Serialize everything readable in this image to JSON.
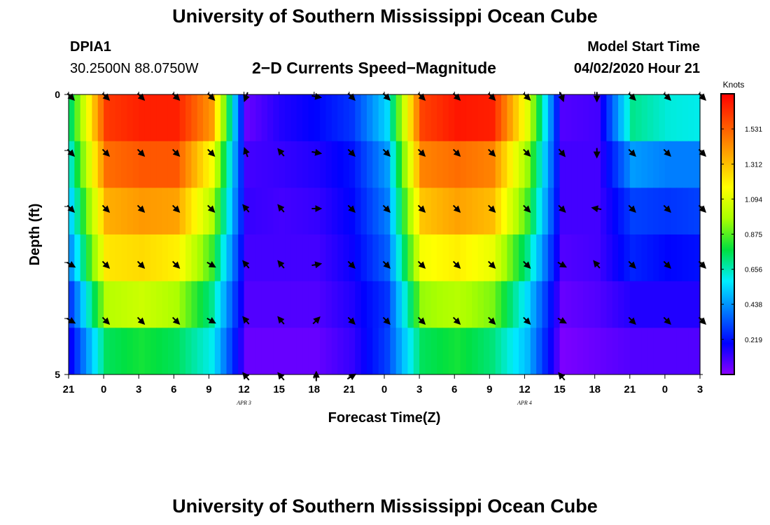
{
  "header": {
    "title": "University of Southern Mississippi Ocean Cube",
    "station_id": "DPIA1",
    "coords": "30.2500N 88.0750W",
    "subtitle": "2−D Currents Speed−Magnitude",
    "model_label": "Model Start Time",
    "model_time": "04/02/2020 Hour 21"
  },
  "footer": {
    "title": "University of Southern Mississippi Ocean Cube"
  },
  "chart_data": {
    "type": "heatmap",
    "title": "2-D Currents Speed-Magnitude",
    "xlabel": "Forecast Time(Z)",
    "ylabel": "Depth (ft)",
    "ylim": [
      0,
      5
    ],
    "y_ticks": [
      "0",
      "5"
    ],
    "x_ticks": [
      "21",
      "0",
      "3",
      "6",
      "9",
      "12",
      "15",
      "18",
      "21",
      "0",
      "3",
      "6",
      "9",
      "12",
      "15",
      "18",
      "21",
      "0",
      "3"
    ],
    "date_labels": [
      {
        "label": "APR 3",
        "at_tick": 5
      },
      {
        "label": "APR 4",
        "at_tick": 13
      }
    ],
    "colorbar": {
      "label": "Knots",
      "ticks": [
        "1.531",
        "1.312",
        "1.094",
        "0.875",
        "0.656",
        "0.438",
        "0.219"
      ],
      "vmin": 0.0,
      "vmax": 1.75,
      "colors": [
        "#8a00ff",
        "#0000ff",
        "#0077ff",
        "#00eeff",
        "#00e040",
        "#aaff00",
        "#ffff00",
        "#ffaa00",
        "#ff5500",
        "#ff0000"
      ]
    },
    "time_hours": [
      0,
      3,
      6,
      9,
      12,
      15,
      18,
      21,
      24,
      27,
      30,
      33,
      36,
      39,
      42,
      45,
      48,
      51,
      54
    ],
    "layers": [
      {
        "depth_label": "0",
        "values": [
          0.75,
          1.62,
          1.68,
          1.68,
          1.4,
          0.05,
          0.15,
          0.2,
          0.28,
          0.55,
          1.6,
          1.7,
          1.68,
          1.1,
          0.08,
          0.1,
          0.7,
          0.62,
          0.6
        ]
      },
      {
        "depth_label": "1",
        "values": [
          0.65,
          1.5,
          1.55,
          1.55,
          1.15,
          0.1,
          0.12,
          0.15,
          0.22,
          0.45,
          1.45,
          1.5,
          1.45,
          0.95,
          0.1,
          0.1,
          0.45,
          0.4,
          0.4
        ]
      },
      {
        "depth_label": "2",
        "values": [
          0.55,
          1.35,
          1.4,
          1.38,
          1.0,
          0.12,
          0.1,
          0.12,
          0.2,
          0.4,
          1.3,
          1.38,
          1.32,
          0.85,
          0.1,
          0.1,
          0.3,
          0.28,
          0.3
        ]
      },
      {
        "depth_label": "3",
        "values": [
          0.45,
          1.22,
          1.25,
          1.2,
          0.85,
          0.1,
          0.1,
          0.1,
          0.18,
          0.35,
          1.15,
          1.2,
          1.12,
          0.7,
          0.08,
          0.1,
          0.25,
          0.2,
          0.22
        ]
      },
      {
        "depth_label": "4",
        "values": [
          0.3,
          1.0,
          1.05,
          0.98,
          0.7,
          0.08,
          0.08,
          0.08,
          0.15,
          0.28,
          0.95,
          1.0,
          0.92,
          0.55,
          0.05,
          0.08,
          0.15,
          0.15,
          0.15
        ]
      },
      {
        "depth_label": "4.5",
        "values": [
          0.2,
          0.75,
          0.8,
          0.75,
          0.6,
          0.05,
          0.05,
          0.05,
          0.12,
          0.3,
          0.75,
          0.8,
          0.72,
          0.5,
          0.02,
          0.05,
          0.08,
          0.08,
          0.08
        ]
      }
    ],
    "arrows": [
      {
        "depth": 0,
        "time": 0,
        "dir": 135
      },
      {
        "depth": 0,
        "time": 3,
        "dir": 135
      },
      {
        "depth": 0,
        "time": 6,
        "dir": 135
      },
      {
        "depth": 0,
        "time": 9,
        "dir": 135
      },
      {
        "depth": 0,
        "time": 12,
        "dir": 135
      },
      {
        "depth": 0,
        "time": 15,
        "dir": 200
      },
      {
        "depth": 0,
        "time": 21,
        "dir": 100
      },
      {
        "depth": 0,
        "time": 24,
        "dir": 135
      },
      {
        "depth": 0,
        "time": 27,
        "dir": 135
      },
      {
        "depth": 0,
        "time": 30,
        "dir": 135
      },
      {
        "depth": 0,
        "time": 33,
        "dir": 135
      },
      {
        "depth": 0,
        "time": 36,
        "dir": 135
      },
      {
        "depth": 0,
        "time": 39,
        "dir": 135
      },
      {
        "depth": 0,
        "time": 42,
        "dir": 160
      },
      {
        "depth": 0,
        "time": 45,
        "dir": 180
      },
      {
        "depth": 0,
        "time": 48,
        "dir": 135
      },
      {
        "depth": 0,
        "time": 51,
        "dir": 135
      },
      {
        "depth": 0,
        "time": 54,
        "dir": 135
      },
      {
        "depth": 1,
        "time": 0,
        "dir": 135
      },
      {
        "depth": 1,
        "time": 3,
        "dir": 135
      },
      {
        "depth": 1,
        "time": 6,
        "dir": 135
      },
      {
        "depth": 1,
        "time": 9,
        "dir": 135
      },
      {
        "depth": 1,
        "time": 12,
        "dir": 135
      },
      {
        "depth": 1,
        "time": 15,
        "dir": 340
      },
      {
        "depth": 1,
        "time": 18,
        "dir": 320
      },
      {
        "depth": 1,
        "time": 21,
        "dir": 100
      },
      {
        "depth": 1,
        "time": 24,
        "dir": 135
      },
      {
        "depth": 1,
        "time": 27,
        "dir": 135
      },
      {
        "depth": 1,
        "time": 30,
        "dir": 135
      },
      {
        "depth": 1,
        "time": 33,
        "dir": 135
      },
      {
        "depth": 1,
        "time": 36,
        "dir": 135
      },
      {
        "depth": 1,
        "time": 39,
        "dir": 135
      },
      {
        "depth": 1,
        "time": 42,
        "dir": 140
      },
      {
        "depth": 1,
        "time": 45,
        "dir": 180
      },
      {
        "depth": 1,
        "time": 48,
        "dir": 135
      },
      {
        "depth": 1,
        "time": 51,
        "dir": 135
      },
      {
        "depth": 1,
        "time": 54,
        "dir": 135
      },
      {
        "depth": 2,
        "time": 0,
        "dir": 135
      },
      {
        "depth": 2,
        "time": 3,
        "dir": 135
      },
      {
        "depth": 2,
        "time": 6,
        "dir": 135
      },
      {
        "depth": 2,
        "time": 9,
        "dir": 135
      },
      {
        "depth": 2,
        "time": 12,
        "dir": 135
      },
      {
        "depth": 2,
        "time": 15,
        "dir": 320
      },
      {
        "depth": 2,
        "time": 18,
        "dir": 320
      },
      {
        "depth": 2,
        "time": 21,
        "dir": 90
      },
      {
        "depth": 2,
        "time": 24,
        "dir": 135
      },
      {
        "depth": 2,
        "time": 27,
        "dir": 135
      },
      {
        "depth": 2,
        "time": 30,
        "dir": 135
      },
      {
        "depth": 2,
        "time": 33,
        "dir": 135
      },
      {
        "depth": 2,
        "time": 36,
        "dir": 135
      },
      {
        "depth": 2,
        "time": 39,
        "dir": 135
      },
      {
        "depth": 2,
        "time": 42,
        "dir": 135
      },
      {
        "depth": 2,
        "time": 45,
        "dir": 280
      },
      {
        "depth": 2,
        "time": 48,
        "dir": 135
      },
      {
        "depth": 2,
        "time": 51,
        "dir": 135
      },
      {
        "depth": 2,
        "time": 54,
        "dir": 135
      },
      {
        "depth": 3,
        "time": 0,
        "dir": 120
      },
      {
        "depth": 3,
        "time": 3,
        "dir": 135
      },
      {
        "depth": 3,
        "time": 6,
        "dir": 135
      },
      {
        "depth": 3,
        "time": 9,
        "dir": 135
      },
      {
        "depth": 3,
        "time": 12,
        "dir": 120
      },
      {
        "depth": 3,
        "time": 15,
        "dir": 320
      },
      {
        "depth": 3,
        "time": 18,
        "dir": 320
      },
      {
        "depth": 3,
        "time": 21,
        "dir": 80
      },
      {
        "depth": 3,
        "time": 24,
        "dir": 135
      },
      {
        "depth": 3,
        "time": 27,
        "dir": 135
      },
      {
        "depth": 3,
        "time": 30,
        "dir": 135
      },
      {
        "depth": 3,
        "time": 33,
        "dir": 135
      },
      {
        "depth": 3,
        "time": 36,
        "dir": 135
      },
      {
        "depth": 3,
        "time": 39,
        "dir": 135
      },
      {
        "depth": 3,
        "time": 42,
        "dir": 120
      },
      {
        "depth": 3,
        "time": 45,
        "dir": 320
      },
      {
        "depth": 3,
        "time": 48,
        "dir": 135
      },
      {
        "depth": 3,
        "time": 51,
        "dir": 135
      },
      {
        "depth": 3,
        "time": 54,
        "dir": 135
      },
      {
        "depth": 4,
        "time": 0,
        "dir": 120
      },
      {
        "depth": 4,
        "time": 3,
        "dir": 135
      },
      {
        "depth": 4,
        "time": 6,
        "dir": 135
      },
      {
        "depth": 4,
        "time": 9,
        "dir": 135
      },
      {
        "depth": 4,
        "time": 12,
        "dir": 120
      },
      {
        "depth": 4,
        "time": 15,
        "dir": 320
      },
      {
        "depth": 4,
        "time": 18,
        "dir": 320
      },
      {
        "depth": 4,
        "time": 21,
        "dir": 45
      },
      {
        "depth": 4,
        "time": 24,
        "dir": 135
      },
      {
        "depth": 4,
        "time": 27,
        "dir": 135
      },
      {
        "depth": 4,
        "time": 30,
        "dir": 135
      },
      {
        "depth": 4,
        "time": 33,
        "dir": 135
      },
      {
        "depth": 4,
        "time": 36,
        "dir": 135
      },
      {
        "depth": 4,
        "time": 39,
        "dir": 135
      },
      {
        "depth": 4,
        "time": 42,
        "dir": 120
      },
      {
        "depth": 4,
        "time": 48,
        "dir": 135
      },
      {
        "depth": 4,
        "time": 51,
        "dir": 135
      },
      {
        "depth": 4,
        "time": 54,
        "dir": 135
      },
      {
        "depth": 5,
        "time": 15,
        "dir": 320
      },
      {
        "depth": 5,
        "time": 18,
        "dir": 320
      },
      {
        "depth": 5,
        "time": 21,
        "dir": 0
      },
      {
        "depth": 5,
        "time": 24,
        "dir": 60
      },
      {
        "depth": 5,
        "time": 42,
        "dir": 320
      }
    ]
  }
}
